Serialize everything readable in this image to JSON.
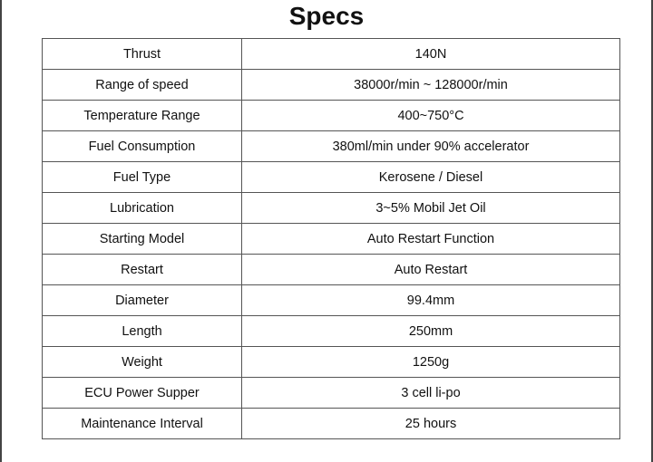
{
  "header": {
    "title": "Specs"
  },
  "table": {
    "rows": [
      [
        "Thrust",
        "140N"
      ],
      [
        "Range of speed",
        "38000r/min ~ 128000r/min"
      ],
      [
        "Temperature Range",
        "400~750°C"
      ],
      [
        "Fuel Consumption",
        "380ml/min under 90% accelerator"
      ],
      [
        "Fuel Type",
        "Kerosene / Diesel"
      ],
      [
        "Lubrication",
        "3~5% Mobil Jet Oil"
      ],
      [
        "Starting Model",
        "Auto Restart Function"
      ],
      [
        "Restart",
        "Auto Restart"
      ],
      [
        "Diameter",
        "99.4mm"
      ],
      [
        "Length",
        "250mm"
      ],
      [
        "Weight",
        "1250g"
      ],
      [
        "ECU Power Supper",
        "3 cell li-po"
      ],
      [
        "Maintenance Interval",
        "25 hours"
      ]
    ]
  }
}
